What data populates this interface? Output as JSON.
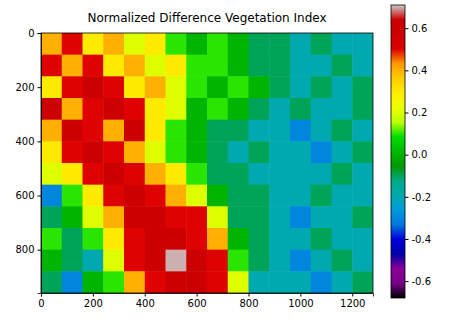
{
  "chart_data": {
    "type": "heatmap",
    "title": "Normalized Difference Vegetation Index",
    "xlim": [
      0,
      1280
    ],
    "ylim": [
      960,
      0
    ],
    "xticks": [
      0,
      200,
      400,
      600,
      800,
      1000,
      1200
    ],
    "yticks": [
      0,
      200,
      400,
      600,
      800
    ],
    "x_edges": [
      0,
      80,
      160,
      240,
      320,
      400,
      480,
      560,
      640,
      720,
      800,
      880,
      960,
      1040,
      1120,
      1200,
      1280
    ],
    "y_edges": [
      0,
      80,
      160,
      240,
      320,
      400,
      480,
      560,
      640,
      720,
      800,
      880,
      960
    ],
    "cells": [
      [
        0.4,
        0.5,
        0.3,
        0.4,
        0.2,
        0.3,
        0.1,
        0.0,
        0.1,
        0.0,
        -0.1,
        -0.1,
        -0.2,
        -0.1,
        -0.2,
        -0.2
      ],
      [
        0.5,
        0.4,
        0.5,
        0.3,
        0.4,
        0.2,
        0.3,
        0.1,
        0.1,
        0.0,
        -0.1,
        -0.1,
        -0.2,
        -0.2,
        -0.1,
        -0.2
      ],
      [
        0.3,
        0.5,
        0.6,
        0.5,
        0.3,
        0.4,
        0.2,
        0.1,
        0.0,
        0.1,
        0.0,
        -0.1,
        -0.2,
        -0.1,
        -0.2,
        -0.1
      ],
      [
        0.6,
        0.4,
        0.5,
        0.6,
        0.5,
        0.3,
        0.2,
        0.0,
        0.1,
        0.0,
        -0.1,
        -0.2,
        -0.1,
        -0.2,
        -0.2,
        -0.1
      ],
      [
        0.4,
        0.6,
        0.5,
        0.4,
        0.6,
        0.3,
        0.1,
        0.0,
        -0.1,
        -0.1,
        -0.2,
        -0.2,
        -0.3,
        -0.2,
        -0.1,
        -0.2
      ],
      [
        0.3,
        0.5,
        0.6,
        0.5,
        0.4,
        0.2,
        0.1,
        0.0,
        -0.1,
        -0.2,
        -0.1,
        -0.2,
        -0.2,
        -0.3,
        -0.2,
        -0.1
      ],
      [
        0.2,
        0.3,
        0.5,
        0.6,
        0.5,
        0.4,
        0.3,
        0.1,
        -0.1,
        -0.1,
        -0.2,
        -0.2,
        -0.2,
        -0.2,
        -0.1,
        -0.2
      ],
      [
        -0.3,
        0.1,
        0.3,
        0.5,
        0.6,
        0.5,
        0.4,
        0.2,
        0.0,
        -0.1,
        -0.1,
        -0.2,
        -0.2,
        -0.1,
        -0.2,
        -0.2
      ],
      [
        -0.1,
        0.0,
        0.2,
        0.4,
        0.6,
        0.6,
        0.5,
        0.5,
        0.2,
        -0.1,
        -0.1,
        -0.2,
        -0.3,
        -0.2,
        -0.2,
        -0.1
      ],
      [
        0.1,
        -0.1,
        0.1,
        0.3,
        0.5,
        0.6,
        0.6,
        0.5,
        0.4,
        0.0,
        -0.1,
        -0.2,
        -0.2,
        -0.1,
        -0.2,
        -0.2
      ],
      [
        0.0,
        -0.1,
        -0.2,
        0.2,
        0.5,
        0.6,
        0.7,
        0.6,
        0.5,
        0.1,
        -0.1,
        -0.2,
        -0.3,
        -0.2,
        -0.1,
        -0.2
      ],
      [
        -0.1,
        -0.3,
        0.0,
        0.1,
        0.4,
        0.5,
        0.6,
        0.6,
        0.5,
        0.2,
        -0.2,
        -0.2,
        -0.2,
        -0.3,
        -0.2,
        -0.1
      ]
    ],
    "colorbar": {
      "range": [
        -0.68,
        0.71
      ],
      "ticks": [
        -0.6,
        -0.4,
        -0.2,
        {
          "value": 0,
          "label": "0.0"
        },
        0.2,
        0.4,
        0.6
      ]
    }
  }
}
